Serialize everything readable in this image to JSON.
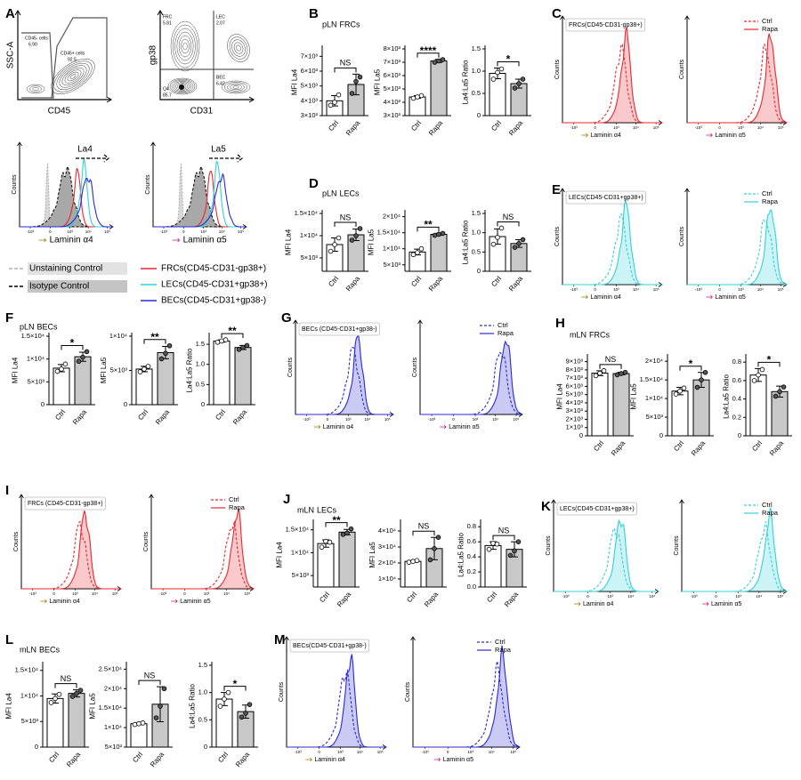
{
  "flow_xticks": [
    {
      "value": -1000,
      "label": "-10³"
    },
    0,
    {
      "value": 1000,
      "label": "10³"
    },
    {
      "value": 10000,
      "label": "10⁴"
    },
    {
      "value": 100000,
      "label": "10⁵"
    }
  ],
  "panel_a": {
    "letter": "A",
    "contour1": {
      "ylabel": "SSC-A",
      "xlabel": "CD45",
      "gates": [
        {
          "name": "CD45- cells",
          "value": {
            "value": 6.9,
            "label": "6.90"
          }
        },
        {
          "name": "CD45+ cells",
          "value": 92.5
        }
      ]
    },
    "contour2": {
      "ylabel": "gp38",
      "xlabel": "CD31",
      "gates": [
        {
          "name": "FRC",
          "value": 5.81
        },
        {
          "name": "LEC",
          "value": 2.07
        },
        {
          "name": "Q4",
          "value": 85.7
        },
        {
          "name": "BEC",
          "value": 6.42
        }
      ]
    },
    "ylabel": "Counts",
    "histograms": [
      {
        "marker": "La4",
        "xlabel": "Laminin α4",
        "color": "#a87400"
      },
      {
        "marker": "La5",
        "xlabel": "Laminin α5",
        "color": "#c8147e"
      }
    ],
    "legend": [
      {
        "name": "Unstaining Control",
        "color": "#b0b0b0"
      },
      {
        "name": "Isotype Control",
        "color": "#000000"
      },
      {
        "name": "FRCs(CD45-CD31-gp38+)",
        "color": "#e8282e"
      },
      {
        "name": "LECs(CD45-CD31+gp38+)",
        "color": "#35d0d6"
      },
      {
        "name": "BECs(CD45-CD31+gp38-)",
        "color": "#2a2ad4"
      }
    ]
  },
  "headings": [
    {
      "letter": "B",
      "tissue": "pLN",
      "cell": "FRCs",
      "tissue_color": "#e3262b",
      "cell_color": "#e3262b"
    },
    {
      "letter": "D",
      "tissue": "pLN",
      "cell": "LECs",
      "tissue_color": "#e3262b",
      "cell_color": "#1fc8d0"
    },
    {
      "letter": "F",
      "tissue": "pLN",
      "cell": "BECs",
      "tissue_color": "#e3262b",
      "cell_color": "#2a2ad4"
    },
    {
      "letter": "H",
      "tissue": "mLN",
      "cell": "FRCs",
      "tissue_color": "#2a2ad4",
      "cell_color": "#e3262b"
    },
    {
      "letter": "J",
      "tissue": "mLN",
      "cell": "LECs",
      "tissue_color": "#2a2ad4",
      "cell_color": "#1fc8d0"
    },
    {
      "letter": "L",
      "tissue": "mLN",
      "cell": "BECs",
      "tissue_color": "#2a2ad4",
      "cell_color": "#2a2ad4"
    }
  ],
  "flow_panels": [
    {
      "letter": "C",
      "population": "FRCs(CD45-CD31-gp38+)",
      "color": "#e8282e",
      "ylabel": "Counts",
      "legend": [
        "Ctrl",
        "Rapa"
      ],
      "plots": [
        {
          "xlabel": "Laminin α4",
          "color": "#a87400"
        },
        {
          "xlabel": "Laminin α5",
          "color": "#c8147e"
        }
      ]
    },
    {
      "letter": "E",
      "population": "LECs(CD45-CD31+gp38+)",
      "color": "#35d0d6",
      "ylabel": "Counts",
      "legend": [
        "Ctrl",
        "Rapa"
      ],
      "plots": [
        {
          "xlabel": "Laminin α4",
          "color": "#a87400"
        },
        {
          "xlabel": "Laminin α5",
          "color": "#c8147e"
        }
      ]
    },
    {
      "letter": "G",
      "population": "BECs (CD45-CD31+gp38-)",
      "color": "#2a2ad4",
      "ylabel": "Counts",
      "legend": [
        "Ctrl",
        "Rapa"
      ],
      "plots": [
        {
          "xlabel": "Laminin α4",
          "color": "#a87400"
        },
        {
          "xlabel": "Laminin α5",
          "color": "#c8147e"
        }
      ]
    },
    {
      "letter": "I",
      "population": "FRCs (CD45-CD31-gp38+)",
      "color": "#e8282e",
      "ylabel": "Counts",
      "legend": [
        "Ctrl",
        "Rapa"
      ],
      "plots": [
        {
          "xlabel": "Laminin α4",
          "color": "#a87400"
        },
        {
          "xlabel": "Laminin α5",
          "color": "#c8147e"
        }
      ]
    },
    {
      "letter": "K",
      "population": "LECs(CD45-CD31+gp38+)",
      "color": "#35d0d6",
      "ylabel": "Counts",
      "legend": [
        "Ctrl",
        "Rapa"
      ],
      "plots": [
        {
          "xlabel": "Laminin α4",
          "color": "#a87400"
        },
        {
          "xlabel": "Laminin α5",
          "color": "#c8147e"
        }
      ]
    },
    {
      "letter": "M",
      "population": "BECs(CD45-CD31+gp38-)",
      "color": "#2a2ad4",
      "ylabel": "Counts",
      "legend": [
        "Ctrl",
        "Rapa"
      ],
      "plots": [
        {
          "xlabel": "Laminin α4",
          "color": "#a87400"
        },
        {
          "xlabel": "Laminin α5",
          "color": "#c8147e"
        }
      ]
    }
  ],
  "chart_data": [
    {
      "type": "bar",
      "ylabel": "MFI La4",
      "categories": [
        "Ctrl",
        "Rapa"
      ],
      "colors": [
        "#ffffff",
        "#c8c8c8"
      ],
      "values": [
        4000,
        5100
      ],
      "errors": [
        350,
        700
      ],
      "points": [
        [
          3700,
          3900,
          4400
        ],
        [
          4500,
          5300,
          5600
        ]
      ],
      "significance": "NS",
      "ylim": [
        3000,
        7500
      ],
      "yticks": [
        {
          "value": 3000,
          "label": "3×10³"
        },
        {
          "value": 4000,
          "label": "4×10³"
        },
        {
          "value": 5000,
          "label": "5×10³"
        },
        {
          "value": 6000,
          "label": "6×10³"
        },
        {
          "value": 7000,
          "label": "7×10³"
        }
      ]
    },
    {
      "type": "bar",
      "ylabel": "MFI La5",
      "categories": [
        "Ctrl",
        "Rapa"
      ],
      "colors": [
        "#ffffff",
        "#c8c8c8"
      ],
      "values": [
        4400,
        7100
      ],
      "errors": [
        100,
        120
      ],
      "points": [
        [
          4300,
          4400,
          4500
        ],
        [
          7000,
          7100,
          7200
        ]
      ],
      "significance": "****",
      "ylim": [
        3000,
        8000
      ],
      "yticks": [
        {
          "value": 3000,
          "label": "3×10³"
        },
        {
          "value": 4000,
          "label": "4×10³"
        },
        {
          "value": 5000,
          "label": "5×10³"
        },
        {
          "value": 6000,
          "label": "6×10³"
        },
        {
          "value": 7000,
          "label": "7×10³"
        },
        {
          "value": 8000,
          "label": "8×10³"
        }
      ]
    },
    {
      "type": "bar",
      "ylabel": "La4:La5 Ratio",
      "categories": [
        "Ctrl",
        "Rapa"
      ],
      "colors": [
        "#ffffff",
        "#c8c8c8"
      ],
      "values": [
        0.95,
        0.72
      ],
      "errors": [
        0.12,
        0.1
      ],
      "points": [
        [
          0.82,
          0.97,
          1.05
        ],
        [
          0.62,
          0.72,
          0.82
        ]
      ],
      "significance": "*",
      "ylim": [
        0,
        1.5
      ],
      "yticks": [
        0,
        0.5,
        {
          "value": 1,
          "label": "1.0"
        },
        1.5
      ]
    },
    {
      "type": "bar",
      "ylabel": "MFI La4",
      "categories": [
        "Ctrl",
        "Rapa"
      ],
      "colors": [
        "#ffffff",
        "#c8c8c8"
      ],
      "values": [
        8000,
        10200
      ],
      "errors": [
        1500,
        1300
      ],
      "points": [
        [
          6500,
          8000,
          9500
        ],
        [
          9000,
          10000,
          11600
        ]
      ],
      "significance": "NS",
      "ylim": [
        2000,
        15000
      ],
      "yticks": [
        {
          "value": 5000,
          "label": "5×10³"
        },
        {
          "value": 10000,
          "label": "1×10⁴"
        },
        {
          "value": 15000,
          "label": "1.5×10⁴"
        }
      ]
    },
    {
      "type": "bar",
      "ylabel": "MFI La5",
      "categories": [
        "Ctrl",
        "Rapa"
      ],
      "colors": [
        "#ffffff",
        "#c8c8c8"
      ],
      "values": [
        9000,
        14500
      ],
      "errors": [
        900,
        300
      ],
      "points": [
        [
          8200,
          8800,
          10000
        ],
        [
          14200,
          14500,
          14800
        ]
      ],
      "significance": "**",
      "ylim": [
        3000,
        21000
      ],
      "yticks": [
        {
          "value": 5000,
          "label": "5×10³"
        },
        {
          "value": 10000,
          "label": "1×10⁴"
        },
        {
          "value": 15000,
          "label": "1.5×10⁴"
        },
        {
          "value": 20000,
          "label": "2×10⁴"
        }
      ]
    },
    {
      "type": "bar",
      "ylabel": "La4:La5 Ratio",
      "categories": [
        "Ctrl",
        "Rapa"
      ],
      "colors": [
        "#ffffff",
        "#c8c8c8"
      ],
      "values": [
        0.9,
        0.72
      ],
      "errors": [
        0.2,
        0.1
      ],
      "points": [
        [
          0.7,
          0.88,
          1.12
        ],
        [
          0.62,
          0.72,
          0.82
        ]
      ],
      "significance": "NS",
      "ylim": [
        0,
        1.5
      ],
      "yticks": [
        0,
        0.5,
        {
          "value": 1,
          "label": "1.0"
        },
        1.5
      ]
    },
    {
      "type": "bar",
      "ylabel": "MFI La4",
      "categories": [
        "Ctrl",
        "Rapa"
      ],
      "colors": [
        "#ffffff",
        "#c8c8c8"
      ],
      "values": [
        8000,
        10500
      ],
      "errors": [
        800,
        1000
      ],
      "points": [
        [
          7300,
          7800,
          8900
        ],
        [
          9500,
          10400,
          11600
        ]
      ],
      "significance": "*",
      "ylim": [
        0,
        15000
      ],
      "yticks": [
        0,
        {
          "value": 5000,
          "label": "5×10³"
        },
        {
          "value": 10000,
          "label": "1×10⁴"
        },
        {
          "value": 15000,
          "label": "1.5×10⁴"
        }
      ]
    },
    {
      "type": "bar",
      "ylabel": "MFI La5",
      "categories": [
        "Ctrl",
        "Rapa"
      ],
      "colors": [
        "#ffffff",
        "#c8c8c8"
      ],
      "values": [
        5200,
        7600
      ],
      "errors": [
        400,
        900
      ],
      "points": [
        [
          4800,
          5200,
          5600
        ],
        [
          6700,
          7500,
          8600
        ]
      ],
      "significance": "**",
      "ylim": [
        0,
        10000
      ],
      "yticks": [
        0,
        {
          "value": 5000,
          "label": "5×10³"
        },
        {
          "value": 10000,
          "label": "1×10⁴"
        }
      ]
    },
    {
      "type": "bar",
      "ylabel": "La4:La5 Ratio",
      "categories": [
        "Ctrl",
        "Rapa"
      ],
      "colors": [
        "#ffffff",
        "#c8c8c8"
      ],
      "values": [
        1.58,
        1.42
      ],
      "errors": [
        0.03,
        0.05
      ],
      "points": [
        [
          1.55,
          1.58,
          1.61
        ],
        [
          1.37,
          1.42,
          1.47
        ]
      ],
      "significance": "**",
      "ylim": [
        0,
        1.7
      ],
      "yticks": [
        0,
        0.5,
        {
          "value": 1,
          "label": "1.0"
        },
        1.5
      ]
    },
    {
      "type": "bar",
      "ylabel": "MFI La4",
      "categories": [
        "Ctrl",
        "Rapa"
      ],
      "colors": [
        "#ffffff",
        "#c8c8c8"
      ],
      "values": [
        7600,
        7550
      ],
      "errors": [
        300,
        150
      ],
      "points": [
        [
          7300,
          7600,
          7900
        ],
        [
          7400,
          7550,
          7700
        ]
      ],
      "significance": "NS",
      "ylim": [
        0,
        9500
      ],
      "yticks": [
        0,
        {
          "value": 1000,
          "label": "1×10³"
        },
        {
          "value": 2000,
          "label": "2×10³"
        },
        {
          "value": 3000,
          "label": "3×10³"
        },
        {
          "value": 4000,
          "label": "4×10³"
        },
        {
          "value": 5000,
          "label": "5×10³"
        },
        {
          "value": 6000,
          "label": "6×10³"
        },
        {
          "value": 7000,
          "label": "7×10³"
        },
        {
          "value": 8000,
          "label": "8×10³"
        },
        {
          "value": 9000,
          "label": "9×10³"
        }
      ]
    },
    {
      "type": "bar",
      "ylabel": "MFI La5",
      "categories": [
        "Ctrl",
        "Rapa"
      ],
      "colors": [
        "#ffffff",
        "#c8c8c8"
      ],
      "values": [
        12000,
        15000
      ],
      "errors": [
        1000,
        2000
      ],
      "points": [
        [
          11200,
          12000,
          12800
        ],
        [
          13000,
          15000,
          17000
        ]
      ],
      "significance": "*",
      "ylim": [
        0,
        21000
      ],
      "yticks": [
        0,
        {
          "value": 5000,
          "label": "5×10³"
        },
        {
          "value": 10000,
          "label": "1×10⁴"
        },
        {
          "value": 15000,
          "label": "1.5×10⁴"
        },
        {
          "value": 20000,
          "label": "2×10⁴"
        }
      ]
    },
    {
      "type": "bar",
      "ylabel": "La4:La5 Ratio",
      "categories": [
        "Ctrl",
        "Rapa"
      ],
      "colors": [
        "#ffffff",
        "#c8c8c8"
      ],
      "values": [
        0.66,
        0.48
      ],
      "errors": [
        0.07,
        0.06
      ],
      "points": [
        [
          0.6,
          0.66,
          0.72
        ],
        [
          0.43,
          0.48,
          0.53
        ]
      ],
      "significance": "*",
      "ylim": [
        0,
        0.85
      ],
      "yticks": [
        0,
        0.2,
        0.4,
        0.6,
        0.8
      ]
    },
    {
      "type": "bar",
      "ylabel": "MFI La4",
      "categories": [
        "Ctrl",
        "Rapa"
      ],
      "colors": [
        "#ffffff",
        "#c8c8c8"
      ],
      "values": [
        12000,
        14500
      ],
      "errors": [
        800,
        600
      ],
      "points": [
        [
          11200,
          12500,
          12300
        ],
        [
          14000,
          14300,
          15200
        ]
      ],
      "significance": "**",
      "ylim": [
        2500,
        16500
      ],
      "yticks": [
        {
          "value": 5000,
          "label": "5×10³"
        },
        {
          "value": 10000,
          "label": "1×10⁴"
        },
        {
          "value": 15000,
          "label": "1.5×10⁴"
        }
      ]
    },
    {
      "type": "bar",
      "ylabel": "MFI La5",
      "categories": [
        "Ctrl",
        "Rapa"
      ],
      "colors": [
        "#ffffff",
        "#c8c8c8"
      ],
      "values": [
        21000,
        29000
      ],
      "errors": [
        500,
        7000
      ],
      "points": [
        [
          20500,
          21000,
          21500
        ],
        [
          22000,
          29000,
          36000
        ]
      ],
      "significance": "NS",
      "ylim": [
        5000,
        45000
      ],
      "yticks": [
        {
          "value": 10000,
          "label": "1×10⁴"
        },
        {
          "value": 20000,
          "label": "2×10⁴"
        },
        {
          "value": 30000,
          "label": "3×10⁴"
        },
        {
          "value": 40000,
          "label": "4×10⁴"
        }
      ]
    },
    {
      "type": "bar",
      "ylabel": "La4:La5 Ratio",
      "categories": [
        "Ctrl",
        "Rapa"
      ],
      "colors": [
        "#ffffff",
        "#c8c8c8"
      ],
      "values": [
        0.55,
        0.5
      ],
      "errors": [
        0.05,
        0.1
      ],
      "points": [
        [
          0.5,
          0.58,
          0.57
        ],
        [
          0.42,
          0.48,
          0.6
        ]
      ],
      "significance": "NS",
      "ylim": [
        0,
        0.85
      ],
      "yticks": [
        {
          "value": 0,
          "label": "0.0"
        },
        0.2,
        0.4,
        0.6,
        0.8
      ]
    },
    {
      "type": "bar",
      "ylabel": "MFI La4",
      "categories": [
        "Ctrl",
        "Rapa"
      ],
      "colors": [
        "#ffffff",
        "#c8c8c8"
      ],
      "values": [
        9500,
        10500
      ],
      "errors": [
        900,
        700
      ],
      "points": [
        [
          8700,
          9500,
          10300
        ],
        [
          9900,
          10500,
          11100
        ]
      ],
      "significance": "NS",
      "ylim": [
        0,
        16000
      ],
      "yticks": [
        0,
        {
          "value": 5000,
          "label": "5×10³"
        },
        {
          "value": 10000,
          "label": "1×10⁴"
        },
        {
          "value": 15000,
          "label": "1.5×10⁴"
        }
      ]
    },
    {
      "type": "bar",
      "ylabel": "MFI La5",
      "categories": [
        "Ctrl",
        "Rapa"
      ],
      "colors": [
        "#ffffff",
        "#c8c8c8"
      ],
      "values": [
        11000,
        16000
      ],
      "errors": [
        200,
        4500
      ],
      "points": [
        [
          10800,
          11000,
          11200
        ],
        [
          12500,
          15500,
          20000
        ]
      ],
      "significance": "NS",
      "ylim": [
        5000,
        26000
      ],
      "yticks": [
        {
          "value": 5000,
          "label": "5×10³"
        },
        {
          "value": 10000,
          "label": "1×10⁴"
        },
        {
          "value": 15000,
          "label": "1.5×10⁴"
        },
        {
          "value": 20000,
          "label": "2×10⁴"
        },
        {
          "value": 25000,
          "label": "2.5×10⁴"
        }
      ]
    },
    {
      "type": "bar",
      "ylabel": "La4:La5 Ratio",
      "categories": [
        "Ctrl",
        "Rapa"
      ],
      "colors": [
        "#ffffff",
        "#c8c8c8"
      ],
      "values": [
        0.88,
        0.65
      ],
      "errors": [
        0.12,
        0.12
      ],
      "points": [
        [
          0.75,
          0.88,
          1.0
        ],
        [
          0.55,
          0.62,
          0.78
        ]
      ],
      "significance": "*",
      "ylim": [
        0,
        1.5
      ],
      "yticks": [
        0,
        0.5,
        {
          "value": 1,
          "label": "1.0"
        },
        1.5
      ]
    }
  ]
}
